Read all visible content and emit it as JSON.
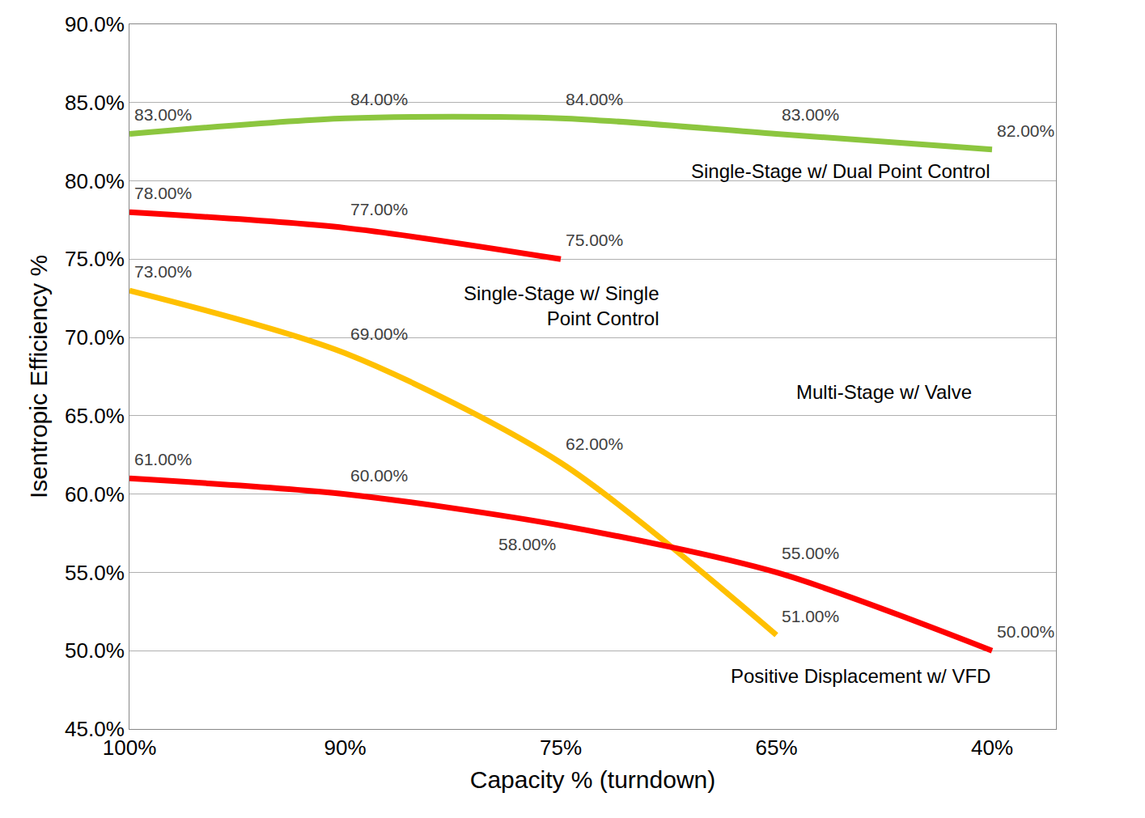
{
  "chart_data": {
    "type": "line",
    "x_label": "Capacity % (turndown)",
    "y_label": "Isentropic Efficiency %",
    "categories": [
      "100%",
      "90%",
      "75%",
      "65%",
      "40%"
    ],
    "ylim": [
      45,
      90
    ],
    "yticks": [
      {
        "value": 45,
        "label": "45.0%"
      },
      {
        "value": 50,
        "label": "50.0%"
      },
      {
        "value": 55,
        "label": "55.0%"
      },
      {
        "value": 60,
        "label": "60.0%"
      },
      {
        "value": 65,
        "label": "65.0%"
      },
      {
        "value": 70,
        "label": "70.0%"
      },
      {
        "value": 75,
        "label": "75.0%"
      },
      {
        "value": 80,
        "label": "80.0%"
      },
      {
        "value": 85,
        "label": "85.0%"
      },
      {
        "value": 90,
        "label": "90.0%"
      }
    ],
    "grid": true,
    "data_labels": true,
    "series": [
      {
        "name": "Single-Stage w/ Dual Point Control",
        "color": "#8cc63f",
        "line_style": "solid",
        "values": [
          83,
          84,
          84,
          83,
          82
        ],
        "value_labels": [
          "83.00%",
          "84.00%",
          "84.00%",
          "83.00%",
          "82.00%"
        ]
      },
      {
        "name": "Single-Stage w/ Single Point Control",
        "color": "#ff0000",
        "line_style": "solid",
        "values": [
          78,
          77,
          75,
          null,
          null
        ],
        "value_labels": [
          "78.00%",
          "77.00%",
          "75.00%",
          null,
          null
        ]
      },
      {
        "name": "Multi-Stage w/ Valve",
        "color": "#ffc000",
        "line_style": "solid",
        "values": [
          73,
          69,
          62,
          51,
          null
        ],
        "value_labels": [
          "73.00%",
          "69.00%",
          "62.00%",
          "51.00%",
          null
        ]
      },
      {
        "name": "Positive Displacement w/ VFD",
        "color": "#ff0000",
        "line_style": "solid",
        "values": [
          61,
          60,
          58,
          55,
          50
        ],
        "value_labels": [
          "61.00%",
          "60.00%",
          "58.00%",
          "55.00%",
          "50.00%"
        ]
      }
    ]
  }
}
